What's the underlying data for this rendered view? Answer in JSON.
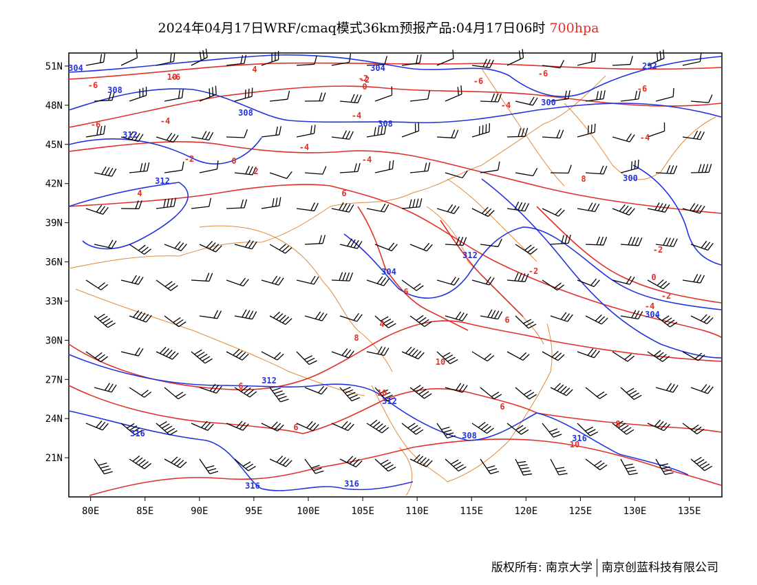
{
  "title": {
    "main": "2024年04月17日WRF/cmaq模式36km预报产品:04月17日06时",
    "level": "700hpa"
  },
  "footer": {
    "copyright": "版权所有: 南京大学",
    "company": "南京创蓝科技有限公司"
  },
  "colors": {
    "temperature_contour": "#e0302a",
    "height_contour": "#2233dd",
    "border": "#e08a3a",
    "wind_barb": "#000000"
  },
  "map": {
    "lon_range": [
      78,
      138
    ],
    "lat_range": [
      18,
      52
    ],
    "x_ticks": [
      "80E",
      "85E",
      "90E",
      "95E",
      "100E",
      "105E",
      "110E",
      "115E",
      "120E",
      "125E",
      "130E",
      "135E"
    ],
    "y_ticks": [
      "51N",
      "48N",
      "45N",
      "42N",
      "39N",
      "36N",
      "33N",
      "30N",
      "27N",
      "24N",
      "21N"
    ],
    "temperature_labels": [
      "4",
      "-2",
      "0",
      "-6",
      "-6",
      "-6",
      "-4",
      "-2",
      "0",
      "-4",
      "2",
      "-4",
      "-4",
      "4",
      "6",
      "6",
      "4",
      "8",
      "10",
      "6",
      "10",
      "6",
      "-6",
      "8",
      "-2",
      "-4",
      "-4",
      "-2",
      "-2",
      "0",
      "-4",
      "-2",
      "-6",
      "6",
      "6",
      "8",
      "10",
      "10",
      "-6"
    ],
    "height_labels": [
      "304",
      "308",
      "308",
      "304",
      "308",
      "312",
      "312",
      "304",
      "312",
      "312",
      "300",
      "292",
      "312",
      "316",
      "316",
      "316",
      "308",
      "316",
      "300",
      "304"
    ]
  }
}
